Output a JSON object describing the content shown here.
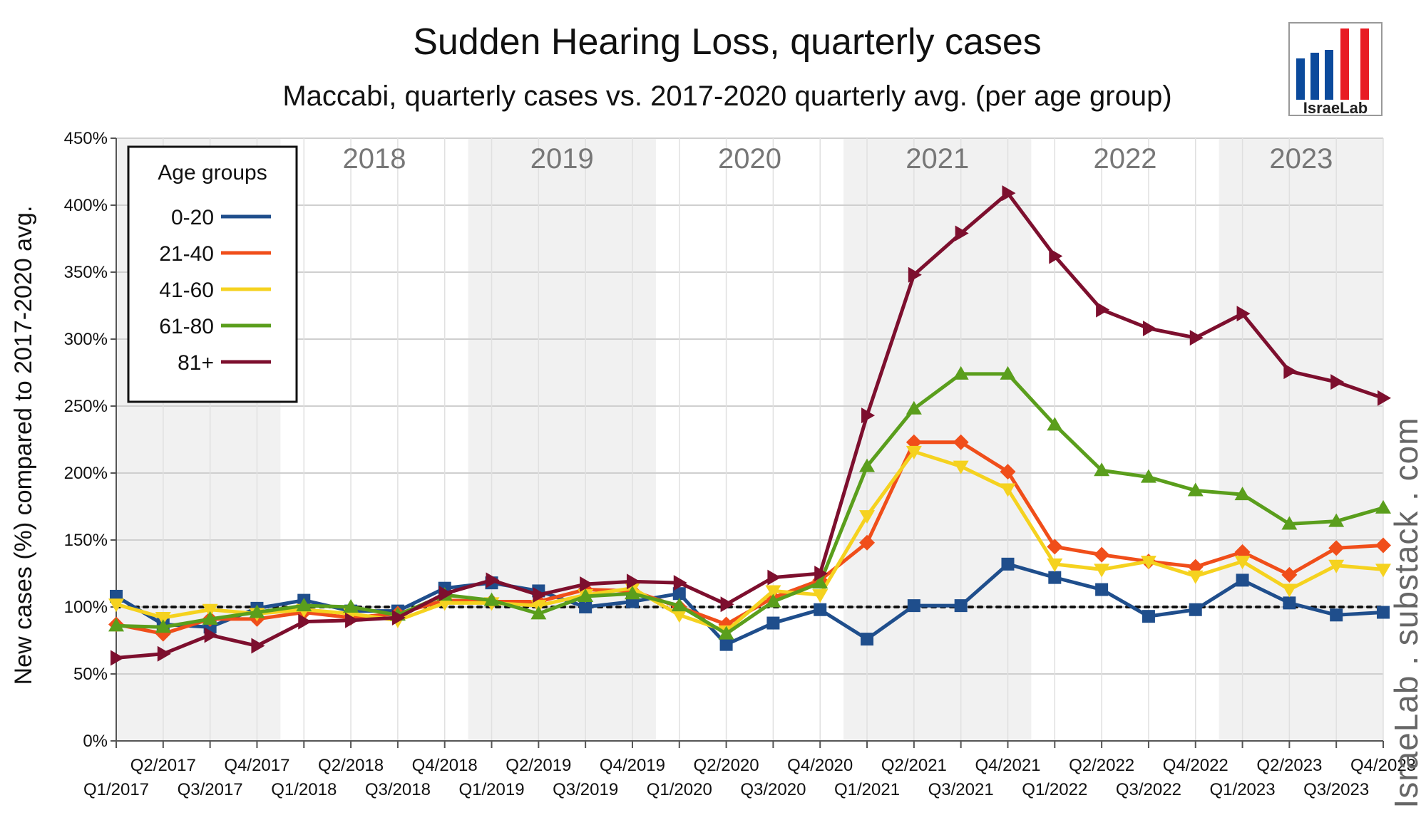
{
  "chart_data": {
    "type": "line",
    "title": "Sudden Hearing Loss, quarterly cases",
    "subtitle": "Maccabi, quarterly cases vs. 2017-2020 quarterly avg. (per age group)",
    "ylabel": "New cases (%) compared to 2017-2020 avg.",
    "xlabel": "",
    "ylim": [
      0,
      450
    ],
    "yticks": [
      "0%",
      "50%",
      "100%",
      "150%",
      "200%",
      "250%",
      "300%",
      "350%",
      "400%",
      "450%"
    ],
    "years": [
      "2018",
      "2019",
      "2020",
      "2021",
      "2022",
      "2023"
    ],
    "categories": [
      "Q1/2017",
      "Q2/2017",
      "Q3/2017",
      "Q4/2017",
      "Q1/2018",
      "Q2/2018",
      "Q3/2018",
      "Q4/2018",
      "Q1/2019",
      "Q2/2019",
      "Q3/2019",
      "Q4/2019",
      "Q1/2020",
      "Q2/2020",
      "Q3/2020",
      "Q4/2020",
      "Q1/2021",
      "Q2/2021",
      "Q3/2021",
      "Q4/2021",
      "Q1/2022",
      "Q2/2022",
      "Q3/2022",
      "Q4/2022",
      "Q1/2023",
      "Q2/2023",
      "Q3/2023",
      "Q4/2023"
    ],
    "legend": {
      "title": "Age groups",
      "position": "top-left"
    },
    "reference_line": 100,
    "grid": true,
    "series": [
      {
        "name": "0-20",
        "color": "#1f4e8c",
        "marker": "square",
        "values": [
          108,
          87,
          85,
          99,
          105,
          97,
          97,
          114,
          118,
          112,
          100,
          104,
          110,
          72,
          88,
          98,
          76,
          101,
          101,
          132,
          122,
          113,
          93,
          98,
          120,
          103,
          94,
          96
        ]
      },
      {
        "name": "21-40",
        "color": "#f04e1a",
        "marker": "diamond",
        "values": [
          87,
          80,
          91,
          91,
          96,
          92,
          95,
          105,
          104,
          104,
          113,
          112,
          100,
          87,
          107,
          120,
          148,
          223,
          223,
          201,
          145,
          139,
          134,
          130,
          141,
          124,
          144,
          146
        ]
      },
      {
        "name": "41-60",
        "color": "#f5d21f",
        "marker": "triangle-down",
        "values": [
          102,
          92,
          98,
          95,
          98,
          95,
          90,
          103,
          103,
          101,
          109,
          114,
          94,
          82,
          112,
          109,
          168,
          216,
          205,
          188,
          132,
          128,
          134,
          123,
          134,
          113,
          131,
          128
        ]
      },
      {
        "name": "61-80",
        "color": "#5a9e1c",
        "marker": "triangle-up",
        "values": [
          86,
          85,
          91,
          96,
          101,
          100,
          94,
          109,
          105,
          95,
          108,
          110,
          101,
          80,
          104,
          118,
          205,
          248,
          274,
          274,
          236,
          202,
          197,
          187,
          184,
          162,
          164,
          174
        ]
      },
      {
        "name": "81+",
        "color": "#7d0f2e",
        "marker": "triangle-right",
        "values": [
          62,
          65,
          79,
          71,
          89,
          90,
          92,
          110,
          120,
          109,
          117,
          119,
          118,
          102,
          122,
          125,
          243,
          348,
          379,
          409,
          362,
          322,
          308,
          301,
          319,
          276,
          268,
          256
        ]
      }
    ]
  },
  "watermark": "IsraeLab . substack . com",
  "logo": {
    "text": "IsraeLab"
  }
}
